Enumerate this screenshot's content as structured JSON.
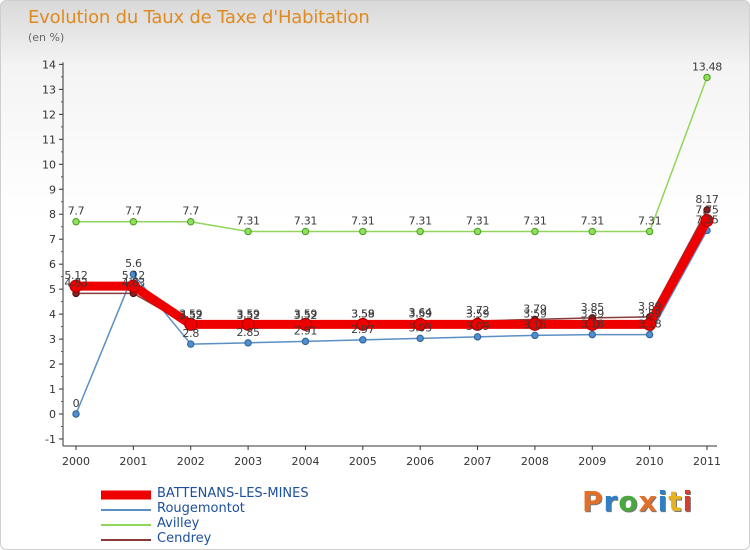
{
  "header": {
    "title": "Evolution du Taux de Taxe d'Habitation",
    "unit": "(en %)"
  },
  "logo": {
    "text": "Proxiti",
    "letters": [
      "P",
      "r",
      "o",
      "x",
      "i",
      "t",
      "i"
    ],
    "colors": [
      "#e0702a",
      "#2f7fc8",
      "#49a83e",
      "#e0702a",
      "#2f7fc8",
      "#e6b320",
      "#d73d2e"
    ]
  },
  "chart_data": {
    "type": "line",
    "title": "Evolution du Taux de Taxe d'Habitation",
    "ylabel": "(en %)",
    "xlabel": "",
    "categories": [
      "2000",
      "2001",
      "2002",
      "2003",
      "2004",
      "2005",
      "2006",
      "2007",
      "2008",
      "2009",
      "2010",
      "2011"
    ],
    "ylim": [
      -1,
      14
    ],
    "yticks": [
      -1,
      0,
      1,
      2,
      3,
      4,
      5,
      6,
      7,
      8,
      9,
      10,
      11,
      12,
      13,
      14
    ],
    "grid": false,
    "legend_position": "bottom-left",
    "series": [
      {
        "name": "BATTENANS-LES-MINES",
        "color": "#ee0000",
        "values": [
          5.12,
          5.12,
          3.59,
          3.59,
          3.59,
          3.59,
          3.59,
          3.59,
          3.59,
          3.59,
          3.59,
          7.75
        ],
        "labels": [
          "5.12",
          "5.12",
          "3.59",
          "3.59",
          "3.59",
          "3.59",
          "3.59",
          "3.59",
          "3.59",
          "3.59",
          "3.59",
          "7.75"
        ]
      },
      {
        "name": "Rougemontot",
        "color": "#5b8fc4",
        "values": [
          0,
          5.6,
          2.8,
          2.85,
          2.91,
          2.97,
          3.03,
          3.09,
          3.15,
          3.18,
          3.18,
          7.35
        ],
        "labels": [
          "0",
          "5.6",
          "2.8",
          "2.85",
          "2.91",
          "2.97",
          "3.03",
          "3.09",
          "3.15",
          "3.18",
          "3.18",
          "7.35"
        ]
      },
      {
        "name": "Avilley",
        "color": "#8fd65a",
        "values": [
          7.7,
          7.7,
          7.7,
          7.31,
          7.31,
          7.31,
          7.31,
          7.31,
          7.31,
          7.31,
          7.31,
          13.48
        ],
        "labels": [
          "7.7",
          "7.7",
          "7.7",
          "7.31",
          "7.31",
          "7.31",
          "7.31",
          "7.31",
          "7.31",
          "7.31",
          "7.31",
          "13.48"
        ]
      },
      {
        "name": "Cendrey",
        "color": "#8b3a3a",
        "values": [
          4.83,
          4.83,
          3.52,
          3.52,
          3.52,
          3.58,
          3.64,
          3.72,
          3.79,
          3.85,
          3.89,
          8.17
        ],
        "labels": [
          "4.83",
          "4.83",
          "3.52",
          "3.52",
          "3.52",
          "3.58",
          "3.64",
          "3.72",
          "3.79",
          "3.85",
          "3.89",
          "8.17"
        ]
      }
    ]
  }
}
